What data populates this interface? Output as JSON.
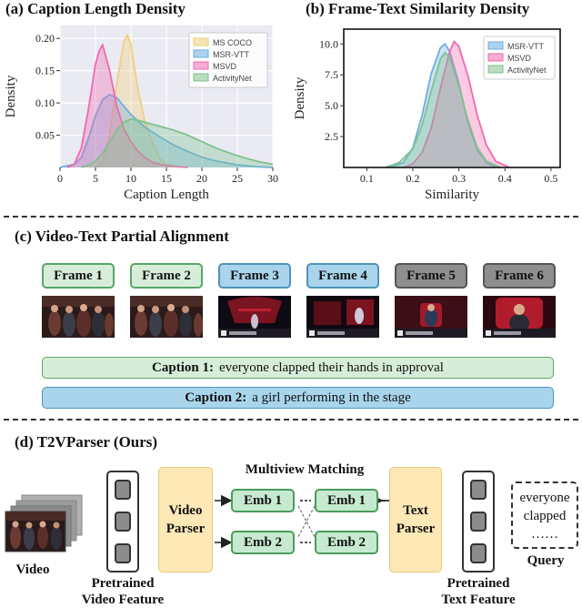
{
  "panel_a": {
    "title": "(a) Caption Length Density",
    "chart_data": {
      "type": "area",
      "xlabel": "Caption Length",
      "ylabel": "Density",
      "xlim": [
        0,
        30
      ],
      "ylim": [
        0,
        0.22
      ],
      "xticks": [
        0,
        5,
        10,
        15,
        20,
        25,
        30
      ],
      "yticks": [
        0.05,
        0.1,
        0.15,
        0.2
      ],
      "grid": true,
      "legend_position": "top-right",
      "series": [
        {
          "name": "MS COCO",
          "color": "#f2cf7a",
          "x": [
            5,
            6,
            7,
            8,
            9,
            9.5,
            10,
            11,
            12,
            13,
            14,
            15,
            17
          ],
          "y": [
            0,
            0.01,
            0.05,
            0.13,
            0.195,
            0.205,
            0.19,
            0.12,
            0.07,
            0.04,
            0.015,
            0.005,
            0
          ]
        },
        {
          "name": "MSR-VTT",
          "color": "#6eaee0",
          "x": [
            0,
            2,
            3,
            4,
            5,
            6,
            7,
            8,
            9,
            10,
            12,
            14,
            16,
            18,
            20,
            22,
            25,
            28,
            30
          ],
          "y": [
            0,
            0.005,
            0.015,
            0.045,
            0.08,
            0.105,
            0.113,
            0.108,
            0.095,
            0.082,
            0.062,
            0.048,
            0.035,
            0.025,
            0.016,
            0.01,
            0.004,
            0.001,
            0
          ]
        },
        {
          "name": "MSVD",
          "color": "#f06aae",
          "x": [
            1,
            2,
            3,
            4,
            5,
            5.5,
            6,
            7,
            8,
            9,
            10,
            11,
            12,
            13,
            15,
            18
          ],
          "y": [
            0,
            0.005,
            0.03,
            0.09,
            0.16,
            0.18,
            0.19,
            0.15,
            0.095,
            0.06,
            0.04,
            0.025,
            0.015,
            0.008,
            0.003,
            0
          ]
        },
        {
          "name": "ActivityNet",
          "color": "#7fc28e",
          "x": [
            3,
            4,
            5,
            6,
            7,
            8,
            9,
            10,
            11,
            12,
            14,
            16,
            18,
            20,
            22,
            24,
            26,
            28,
            30
          ],
          "y": [
            0,
            0.004,
            0.01,
            0.022,
            0.04,
            0.058,
            0.07,
            0.075,
            0.073,
            0.07,
            0.064,
            0.058,
            0.05,
            0.04,
            0.03,
            0.022,
            0.015,
            0.009,
            0.005
          ]
        }
      ]
    }
  },
  "panel_b": {
    "title": "(b) Frame-Text Similarity Density",
    "chart_data": {
      "type": "area",
      "xlabel": "Similarity",
      "ylabel": "Density",
      "xlim": [
        0.05,
        0.52
      ],
      "ylim": [
        0,
        11.2
      ],
      "xticks": [
        0.1,
        0.2,
        0.3,
        0.4,
        0.5
      ],
      "yticks": [
        2.5,
        5.0,
        7.5,
        10.0
      ],
      "grid": false,
      "legend_position": "top-right",
      "series": [
        {
          "name": "MSR-VTT",
          "color": "#6eaee0",
          "x": [
            0.15,
            0.18,
            0.2,
            0.22,
            0.24,
            0.26,
            0.27,
            0.28,
            0.3,
            0.32,
            0.34,
            0.36,
            0.38
          ],
          "y": [
            0,
            0.4,
            1.6,
            4.2,
            7.6,
            9.7,
            10.0,
            9.4,
            6.8,
            3.6,
            1.4,
            0.4,
            0
          ]
        },
        {
          "name": "MSVD",
          "color": "#f06aae",
          "x": [
            0.18,
            0.2,
            0.22,
            0.24,
            0.26,
            0.28,
            0.29,
            0.3,
            0.32,
            0.34,
            0.36,
            0.38,
            0.41
          ],
          "y": [
            0,
            0.3,
            1.2,
            3.2,
            6.4,
            9.4,
            10.2,
            9.8,
            7.4,
            4.2,
            1.8,
            0.5,
            0
          ]
        },
        {
          "name": "ActivityNet",
          "color": "#7fc28e",
          "x": [
            0.14,
            0.17,
            0.2,
            0.22,
            0.24,
            0.26,
            0.27,
            0.28,
            0.3,
            0.32,
            0.34,
            0.36,
            0.39
          ],
          "y": [
            0,
            0.4,
            1.5,
            3.4,
            6.2,
            8.8,
            9.3,
            8.9,
            6.6,
            3.8,
            1.6,
            0.5,
            0
          ]
        }
      ]
    }
  },
  "panel_c": {
    "title": "(c) Video-Text Partial Alignment",
    "frames": [
      {
        "label": "Frame 1",
        "group": "green"
      },
      {
        "label": "Frame 2",
        "group": "green"
      },
      {
        "label": "Frame 3",
        "group": "blue"
      },
      {
        "label": "Frame 4",
        "group": "blue"
      },
      {
        "label": "Frame 5",
        "group": "gray"
      },
      {
        "label": "Frame 6",
        "group": "gray"
      }
    ],
    "captions": [
      {
        "prefix": "Caption 1:",
        "text": "everyone clapped their hands in approval"
      },
      {
        "prefix": "Caption 2:",
        "text": "a girl performing in the stage"
      }
    ]
  },
  "panel_d": {
    "title": "(d) T2VParser (Ours)",
    "video_label": "Video",
    "video_feature_label_1": "Pretrained",
    "video_feature_label_2": "Video Feature",
    "video_parser_1": "Video",
    "video_parser_2": "Parser",
    "matching_title": "Multiview Matching",
    "emb_1": "Emb 1",
    "emb_2": "Emb 2",
    "text_parser_1": "Text",
    "text_parser_2": "Parser",
    "text_feature_label_1": "Pretrained",
    "text_feature_label_2": "Text Feature",
    "query_text_1": "everyone",
    "query_text_2": "clapped",
    "query_text_3": "……",
    "query_label": "Query"
  }
}
